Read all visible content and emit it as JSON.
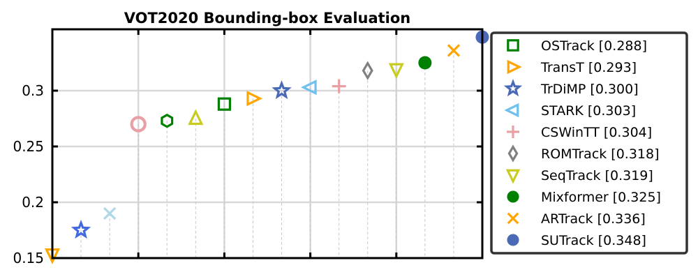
{
  "chart_data": {
    "type": "scatter",
    "title": "VOT2020 Bounding-box Evaluation",
    "xlabel": "",
    "ylabel": "",
    "ylim": [
      0.15,
      0.355
    ],
    "yticks": [
      0.15,
      0.2,
      0.25,
      0.3
    ],
    "ytick_labels": [
      "0.15",
      "0.2",
      "0.25",
      "0.3"
    ],
    "grid": true,
    "legend_position": "right",
    "series": [
      {
        "name": "OSTrack [0.288]",
        "legend": true,
        "marker": "square-open",
        "color": "#008000",
        "x": 7,
        "y": 0.288
      },
      {
        "name": "TransT [0.293]",
        "legend": true,
        "marker": "triangle-right-open",
        "color": "#FFA500",
        "x": 8,
        "y": 0.293
      },
      {
        "name": "TrDiMP [0.300]",
        "legend": true,
        "marker": "star-open",
        "color": "#4A6AB8",
        "x": 9,
        "y": 0.3
      },
      {
        "name": "STARK [0.303]",
        "legend": true,
        "marker": "triangle-left-open",
        "color": "#6EC1EE",
        "x": 10,
        "y": 0.303
      },
      {
        "name": "CSWinTT [0.304]",
        "legend": true,
        "marker": "plus",
        "color": "#E8A0A4",
        "x": 11,
        "y": 0.304
      },
      {
        "name": "ROMTrack [0.318]",
        "legend": true,
        "marker": "diamond-open",
        "color": "#808080",
        "x": 12,
        "y": 0.318
      },
      {
        "name": "SeqTrack [0.319]",
        "legend": true,
        "marker": "triangle-down-open",
        "color": "#C8CC20",
        "x": 13,
        "y": 0.319
      },
      {
        "name": "Mixformer [0.325]",
        "legend": true,
        "marker": "circle-filled",
        "color": "#008000",
        "x": 14,
        "y": 0.325
      },
      {
        "name": "ARTrack [0.336]",
        "legend": true,
        "marker": "x",
        "color": "#FFA500",
        "x": 15,
        "y": 0.336
      },
      {
        "name": "SUTrack [0.348]",
        "legend": true,
        "marker": "circle-filled",
        "color": "#4A6AB8",
        "x": 16,
        "y": 0.348
      },
      {
        "name": "",
        "legend": false,
        "marker": "triangle-down-open",
        "color": "#FFA500",
        "x": 1,
        "y": 0.153
      },
      {
        "name": "",
        "legend": false,
        "marker": "star-open",
        "color": "#4169E1",
        "x": 2,
        "y": 0.175
      },
      {
        "name": "",
        "legend": false,
        "marker": "x",
        "color": "#ADD8E6",
        "x": 3,
        "y": 0.19
      },
      {
        "name": "",
        "legend": false,
        "marker": "circle-open",
        "color": "#E8A0A4",
        "x": 4,
        "y": 0.27
      },
      {
        "name": "",
        "legend": false,
        "marker": "hexagon-open",
        "color": "#008000",
        "x": 5,
        "y": 0.273
      },
      {
        "name": "",
        "legend": false,
        "marker": "triangle-up-open",
        "color": "#C8CC20",
        "x": 6,
        "y": 0.275
      }
    ],
    "xlim": [
      1,
      16
    ]
  }
}
